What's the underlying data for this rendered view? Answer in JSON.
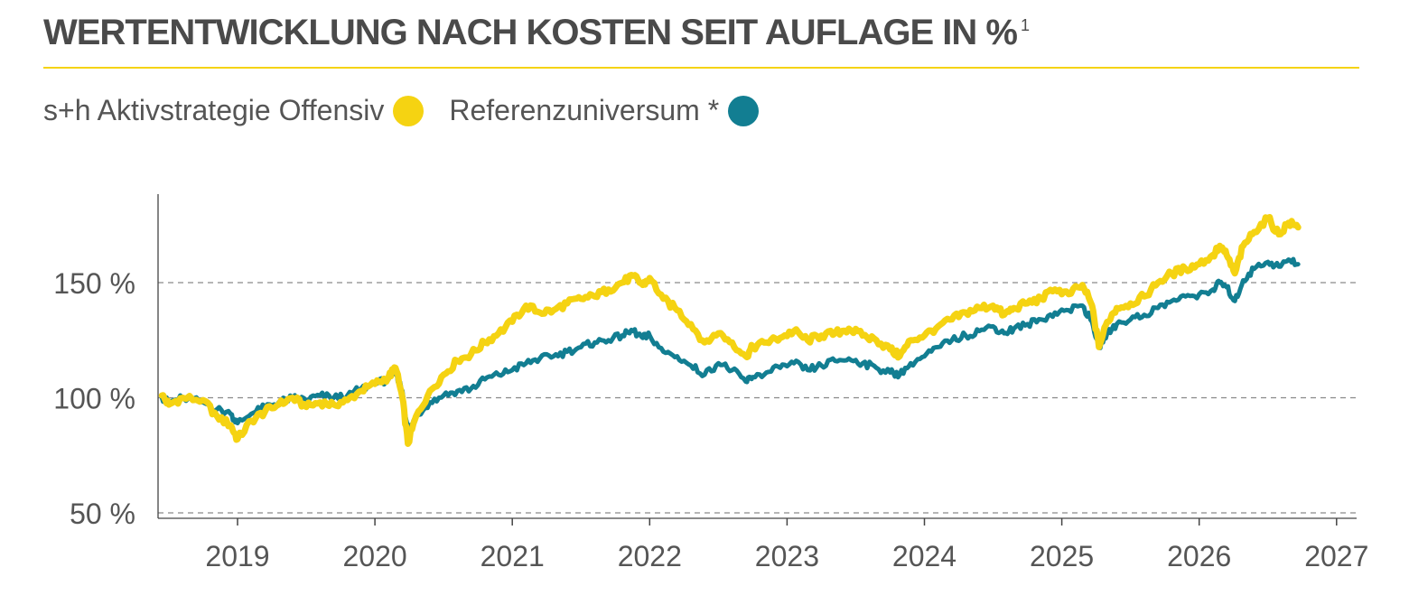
{
  "header": {
    "title": "WERTENTWICKLUNG NACH KOSTEN SEIT AUFLAGE IN %",
    "footnote": "1"
  },
  "legend": {
    "items": [
      {
        "label": "s+h Aktivstrategie Offensiv",
        "color": "#f5d312"
      },
      {
        "label": "Referenzuniversum *",
        "color": "#127e92"
      }
    ]
  },
  "chart_data": {
    "type": "line",
    "ylim": [
      50,
      190
    ],
    "xlim": [
      2018.43,
      2027.1
    ],
    "y_ticks": [
      50,
      100,
      150
    ],
    "y_tick_labels": [
      "50 %",
      "100 %",
      "150 %"
    ],
    "x_ticks": [
      2019,
      2020,
      2021,
      2022,
      2023,
      2024,
      2025,
      2026,
      2027
    ],
    "x_tick_labels": [
      "2019",
      "2020",
      "2021",
      "2022",
      "2023",
      "2024",
      "2025",
      "2026",
      "2027"
    ],
    "grid": "horizontal-dashed",
    "series": [
      {
        "name": "s+h Aktivstrategie Offensiv",
        "color": "#f5d312",
        "x": [
          2018.45,
          2018.5,
          2018.6,
          2018.75,
          2018.85,
          2018.95,
          2019.0,
          2019.1,
          2019.2,
          2019.3,
          2019.4,
          2019.5,
          2019.6,
          2019.7,
          2019.8,
          2019.9,
          2020.0,
          2020.1,
          2020.15,
          2020.2,
          2020.24,
          2020.3,
          2020.4,
          2020.5,
          2020.6,
          2020.7,
          2020.8,
          2020.9,
          2021.0,
          2021.1,
          2021.2,
          2021.3,
          2021.4,
          2021.5,
          2021.6,
          2021.7,
          2021.8,
          2021.88,
          2021.95,
          2022.0,
          2022.1,
          2022.2,
          2022.3,
          2022.4,
          2022.5,
          2022.6,
          2022.7,
          2022.75,
          2022.85,
          2022.95,
          2023.05,
          2023.15,
          2023.25,
          2023.35,
          2023.45,
          2023.55,
          2023.65,
          2023.75,
          2023.82,
          2023.9,
          2024.0,
          2024.1,
          2024.2,
          2024.3,
          2024.4,
          2024.5,
          2024.58,
          2024.65,
          2024.75,
          2024.85,
          2024.95,
          2025.05,
          2025.15,
          2025.22,
          2025.27,
          2025.33,
          2025.4,
          2025.5,
          2025.6,
          2025.7,
          2025.8,
          2025.9,
          2026.0,
          2026.1,
          2026.15,
          2026.2,
          2026.26,
          2026.32,
          2026.4,
          2026.5,
          2026.58,
          2026.65,
          2026.72
        ],
        "values": [
          101,
          97,
          100,
          99,
          92,
          88,
          82,
          90,
          94,
          97,
          100,
          96,
          98,
          97,
          99,
          103,
          106,
          109,
          113,
          100,
          80,
          92,
          103,
          110,
          116,
          119,
          124,
          128,
          133,
          140,
          137,
          138,
          141,
          143,
          144,
          147,
          150,
          153,
          149,
          152,
          143,
          138,
          132,
          124,
          128,
          124,
          118,
          122,
          124,
          126,
          129,
          125,
          127,
          128,
          130,
          127,
          125,
          121,
          118,
          125,
          127,
          131,
          134,
          137,
          139,
          140,
          136,
          139,
          141,
          143,
          147,
          145,
          149,
          140,
          122,
          133,
          139,
          141,
          144,
          150,
          154,
          156,
          158,
          162,
          166,
          162,
          154,
          166,
          172,
          178,
          171,
          176,
          174
        ]
      },
      {
        "name": "Referenzuniversum *",
        "color": "#127e92",
        "x": [
          2018.45,
          2018.5,
          2018.6,
          2018.75,
          2018.85,
          2018.95,
          2019.0,
          2019.1,
          2019.2,
          2019.3,
          2019.4,
          2019.5,
          2019.6,
          2019.7,
          2019.8,
          2019.9,
          2020.0,
          2020.1,
          2020.15,
          2020.2,
          2020.24,
          2020.3,
          2020.4,
          2020.5,
          2020.6,
          2020.7,
          2020.8,
          2020.9,
          2021.0,
          2021.1,
          2021.2,
          2021.3,
          2021.4,
          2021.5,
          2021.6,
          2021.7,
          2021.8,
          2021.88,
          2021.95,
          2022.0,
          2022.1,
          2022.2,
          2022.3,
          2022.4,
          2022.5,
          2022.6,
          2022.7,
          2022.75,
          2022.85,
          2022.95,
          2023.05,
          2023.15,
          2023.25,
          2023.35,
          2023.45,
          2023.55,
          2023.65,
          2023.75,
          2023.82,
          2023.9,
          2024.0,
          2024.1,
          2024.2,
          2024.3,
          2024.4,
          2024.5,
          2024.58,
          2024.65,
          2024.75,
          2024.85,
          2024.95,
          2025.05,
          2025.15,
          2025.22,
          2025.27,
          2025.33,
          2025.4,
          2025.5,
          2025.6,
          2025.7,
          2025.8,
          2025.9,
          2026.0,
          2026.1,
          2026.15,
          2026.2,
          2026.26,
          2026.32,
          2026.4,
          2026.5,
          2026.58,
          2026.65,
          2026.72
        ],
        "values": [
          100,
          98,
          100,
          98,
          95,
          93,
          89,
          93,
          96,
          98,
          100,
          99,
          101,
          100,
          101,
          104,
          106,
          108,
          111,
          103,
          85,
          92,
          98,
          101,
          103,
          104,
          108,
          110,
          112,
          115,
          117,
          118,
          120,
          122,
          124,
          125,
          127,
          129,
          126,
          127,
          120,
          118,
          114,
          110,
          115,
          112,
          107,
          109,
          111,
          113,
          115,
          112,
          114,
          116,
          117,
          115,
          113,
          111,
          110,
          115,
          118,
          122,
          125,
          127,
          129,
          131,
          128,
          130,
          132,
          134,
          137,
          138,
          140,
          133,
          122,
          128,
          132,
          134,
          136,
          139,
          142,
          144,
          145,
          147,
          150,
          148,
          142,
          151,
          156,
          159,
          157,
          160,
          158
        ]
      }
    ]
  }
}
